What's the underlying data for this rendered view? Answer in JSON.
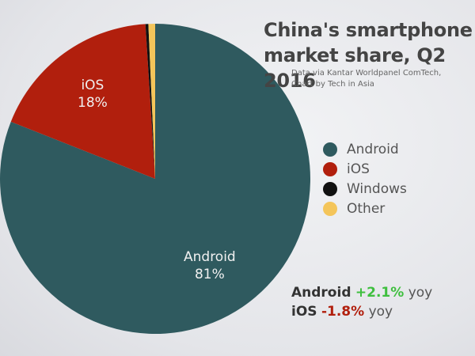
{
  "chart_data": {
    "type": "pie",
    "title": "China's smartphone market share, Q2 2016",
    "subtitle": [
      "Data via Kantar Worldpanel ComTech,",
      "Chart by Tech in Asia"
    ],
    "slices": [
      {
        "name": "Android",
        "value": 81,
        "label": "81%",
        "color": "#2f5a5f"
      },
      {
        "name": "iOS",
        "value": 18,
        "label": "18%",
        "color": "#b11f0d"
      },
      {
        "name": "Windows",
        "value": 0.3,
        "color": "#111111"
      },
      {
        "name": "Other",
        "value": 0.7,
        "color": "#f4c55a"
      }
    ],
    "legend": [
      "Android",
      "iOS",
      "Windows",
      "Other"
    ],
    "legend_placement": "right",
    "annotations": [
      {
        "name": "Android",
        "change": "+2.1%",
        "unit": "yoy",
        "color": "#3fbf3f"
      },
      {
        "name": "iOS",
        "change": "-1.8%",
        "unit": "yoy",
        "color": "#b11f0d"
      }
    ]
  }
}
